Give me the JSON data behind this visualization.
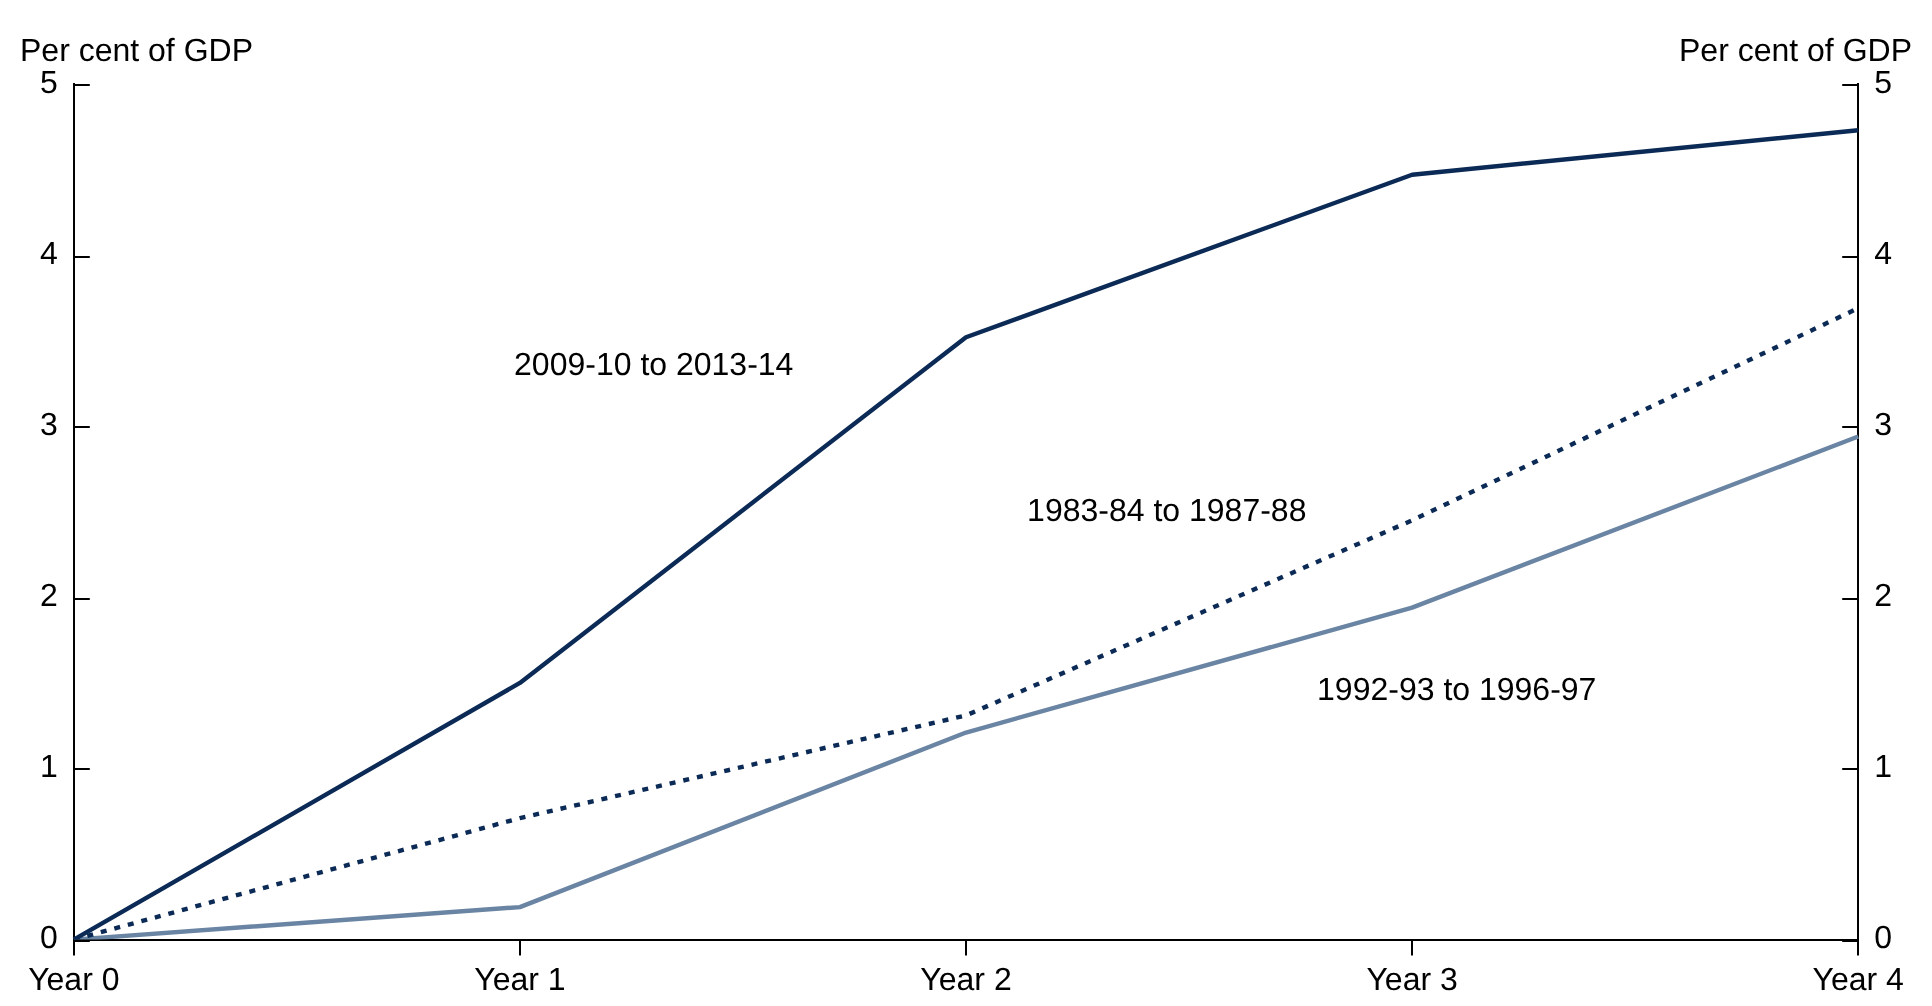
{
  "chart_data": {
    "type": "line",
    "ylabel": "Per cent of GDP",
    "y2label": "Per cent of GDP",
    "categories": [
      "Year 0",
      "Year 1",
      "Year 2",
      "Year 3",
      "Year 4"
    ],
    "series": [
      {
        "name": "2009-10 to 2013-14",
        "color": "#0b2a55",
        "values": [
          0,
          1.5,
          3.52,
          4.47,
          4.73
        ]
      },
      {
        "name": "1983-84 to 1987-88",
        "color": "#0b2a55",
        "line_style": "dotted",
        "values": [
          0,
          0.71,
          1.31,
          2.45,
          3.69
        ]
      },
      {
        "name": "1992-93 to 1996-97",
        "color": "#6a84a3",
        "values": [
          0,
          0.19,
          1.21,
          1.94,
          2.94
        ]
      }
    ],
    "ylim": [
      0,
      5
    ],
    "yticks": [
      0,
      1,
      2,
      3,
      4,
      5
    ],
    "y2lim": [
      0,
      5
    ],
    "y2ticks": [
      0,
      1,
      2,
      3,
      4,
      5
    ],
    "grid": false,
    "legend": false,
    "marker": "none"
  }
}
